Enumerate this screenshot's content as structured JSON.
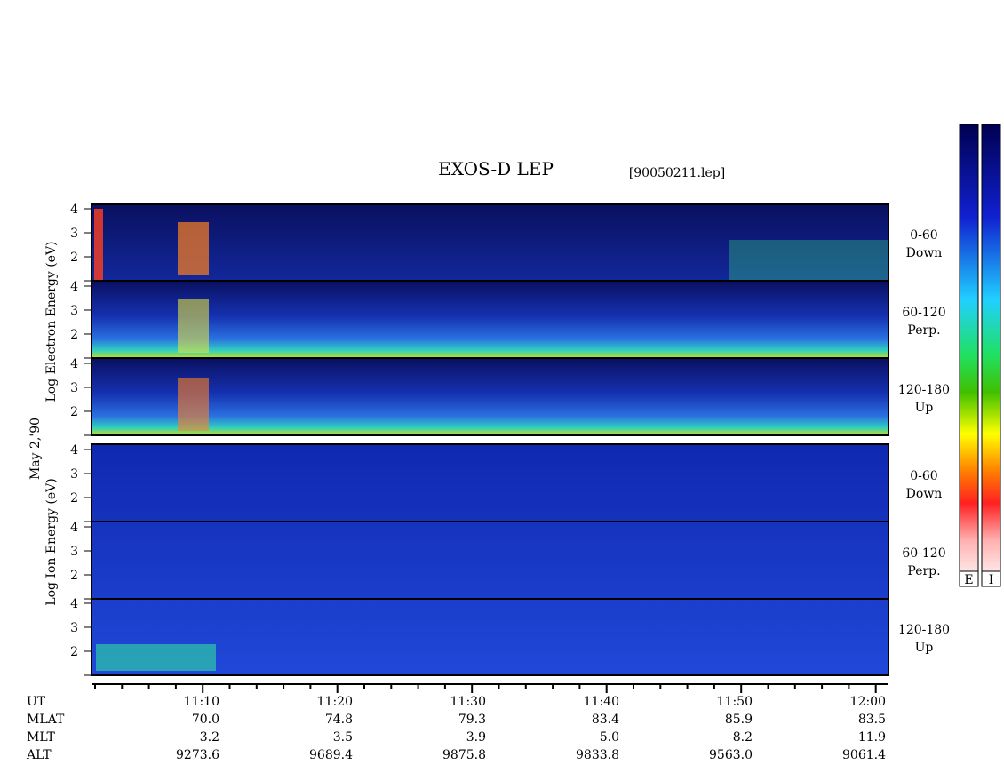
{
  "title": "EXOS-D LEP",
  "file": "[90050211.lep]",
  "date": "May 2,'90",
  "electron_axis_label": "Log Electron Energy (eV)",
  "ion_axis_label": "Log Ion Energy (eV)",
  "energy_ticks": [
    2,
    3,
    4
  ],
  "panels": [
    {
      "pitch": "0-60",
      "direction": "Down"
    },
    {
      "pitch": "60-120",
      "direction": "Perp."
    },
    {
      "pitch": "120-180",
      "direction": "Up"
    },
    {
      "pitch": "0-60",
      "direction": "Down"
    },
    {
      "pitch": "60-120",
      "direction": "Perp."
    },
    {
      "pitch": "120-180",
      "direction": "Up"
    }
  ],
  "colorbar_labels": [
    "E",
    "I"
  ],
  "ephemeris": {
    "labels": [
      "UT",
      "MLAT",
      "MLT",
      "ALT"
    ],
    "columns": [
      [
        "11:10",
        "70.0",
        "3.2",
        "9273.6"
      ],
      [
        "11:20",
        "74.8",
        "3.5",
        "9689.4"
      ],
      [
        "11:30",
        "79.3",
        "3.9",
        "9875.8"
      ],
      [
        "11:40",
        "83.4",
        "5.0",
        "9833.8"
      ],
      [
        "11:50",
        "85.9",
        "8.2",
        "9563.0"
      ],
      [
        "12:00",
        "83.5",
        "11.9",
        "9061.4"
      ]
    ]
  }
}
